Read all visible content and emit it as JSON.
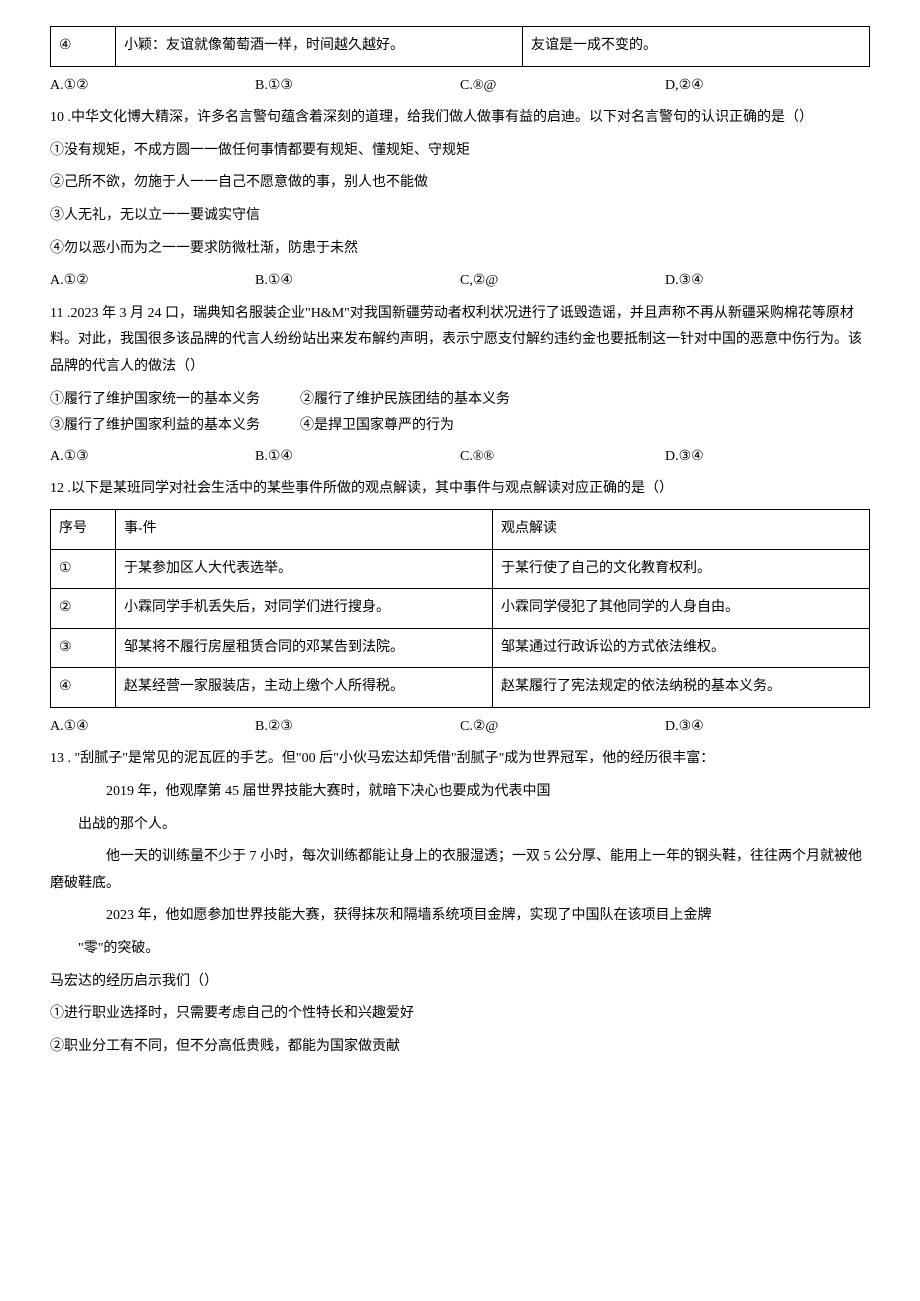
{
  "table9": {
    "rows": [
      [
        "④",
        "小颖：友谊就像葡萄酒一样，时间越久越好。",
        "友谊是一成不变的。"
      ]
    ]
  },
  "q9_opts": {
    "a": "A.①②",
    "b": "B.①③",
    "c": "C.®@",
    "d": "D,②④"
  },
  "q10": {
    "stem": "10 .中华文化博大精深，许多名言警句蕴含着深刻的道理，给我们做人做事有益的启迪。以下对名言警句的认识正确的是（）",
    "s1": "①没有规矩，不成方圆一一做任何事情都要有规矩、懂规矩、守规矩",
    "s2": "②己所不欲，勿施于人一一自己不愿意做的事，别人也不能做",
    "s3": "③人无礼，无以立一一要诚实守信",
    "s4": "④勿以恶小而为之一一要求防微杜渐，防患于未然",
    "opts": {
      "a": "A.①②",
      "b": "B.①④",
      "c": "C,②@",
      "d": "D.③④"
    }
  },
  "q11": {
    "stem": "11 .2023 年 3 月 24 口，瑞典知名服装企业\"H&M\"对我国新疆劳动者权利状况进行了诋毁造谣，并且声称不再从新疆采购棉花等原材料。对此，我国很多该品牌的代言人纷纷站出来发布解约声明，表示宁愿支付解约违约金也要抵制这一针对中国的恶意中伤行为。该品牌的代言人的做法（）",
    "d1": "①履行了维护国家统一的基本义务",
    "d2": "②履行了维护民族团结的基本义务",
    "d3": "③履行了维护国家利益的基本义务",
    "d4": "④是捍卫国家尊严的行为",
    "opts": {
      "a": "A.①③",
      "b": "B.①④",
      "c": "C.®®",
      "d": "D.③④"
    }
  },
  "q12": {
    "stem": "12 .以下是某班同学对社会生活中的某些事件所做的观点解读，其中事件与观点解读对应正确的是（）",
    "header": [
      "序号",
      "事-件",
      "观点解读"
    ],
    "rows": [
      [
        "①",
        "于某参加区人大代表选举。",
        "于某行使了自己的文化教育权利。"
      ],
      [
        "②",
        "小霖同学手机丢失后，对同学们进行搜身。",
        "小霖同学侵犯了其他同学的人身自由。"
      ],
      [
        "③",
        "邹某将不履行房屋租赁合同的邓某告到法院。",
        "邹某通过行政诉讼的方式依法维权。"
      ],
      [
        "④",
        "赵某经营一家服装店，主动上缴个人所得税。",
        "赵某履行了宪法规定的依法纳税的基本义务。"
      ]
    ],
    "opts": {
      "a": "A.①④",
      "b": "B.②③",
      "c": "C.②@",
      "d": "D.③④"
    }
  },
  "q13": {
    "stem": "13 . \"刮腻子\"是常见的泥瓦匠的手艺。但\"00 后\"小伙马宏达却凭借\"刮腻子\"成为世界冠军，他的经历很丰富：",
    "p1a": "2019 年，他观摩第 45 届世界技能大赛时，就暗下决心也要成为代表中国",
    "p1b": "出战的那个人。",
    "p2": "他一天的训练量不少于 7 小时，每次训练都能让身上的衣服湿透；一双 5 公分厚、能用上一年的钢头鞋，往往两个月就被他磨破鞋底。",
    "p3a": "2023 年，他如愿参加世界技能大赛，获得抹灰和隔墙系统项目金牌，实现了中国队在该项目上金牌",
    "p3b": "\"零\"的突破。",
    "p4": "马宏达的经历启示我们（）",
    "s1": "①进行职业选择时，只需要考虑自己的个性特长和兴趣爱好",
    "s2": "②职业分工有不同，但不分高低贵贱，都能为国家做贡献"
  }
}
